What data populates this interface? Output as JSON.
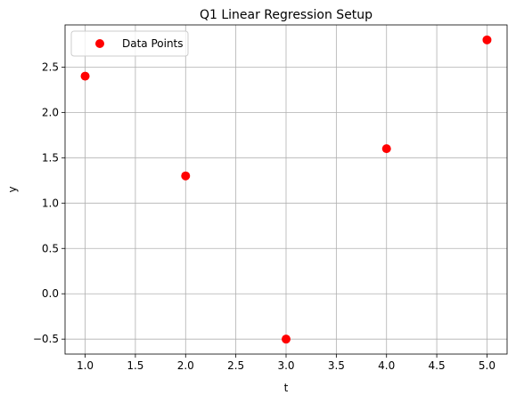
{
  "chart_data": {
    "type": "scatter",
    "title": "Q1 Linear Regression Setup",
    "xlabel": "t",
    "ylabel": "y",
    "xlim": [
      0.8,
      5.2
    ],
    "ylim": [
      -0.665,
      2.965
    ],
    "xticks": [
      1.0,
      1.5,
      2.0,
      2.5,
      3.0,
      3.5,
      4.0,
      4.5,
      5.0
    ],
    "xtick_labels": [
      "1.0",
      "1.5",
      "2.0",
      "2.5",
      "3.0",
      "3.5",
      "4.0",
      "4.5",
      "5.0"
    ],
    "yticks": [
      -0.5,
      0.0,
      0.5,
      1.0,
      1.5,
      2.0,
      2.5
    ],
    "ytick_labels": [
      "−0.5",
      "0.0",
      "0.5",
      "1.0",
      "1.5",
      "2.0",
      "2.5"
    ],
    "grid": true,
    "legend_position": "top-left",
    "series": [
      {
        "name": "Data Points",
        "color": "#ff0000",
        "marker": "circle",
        "x": [
          1,
          2,
          3,
          4,
          5
        ],
        "y": [
          2.4,
          1.3,
          -0.5,
          1.6,
          2.8
        ]
      }
    ]
  }
}
